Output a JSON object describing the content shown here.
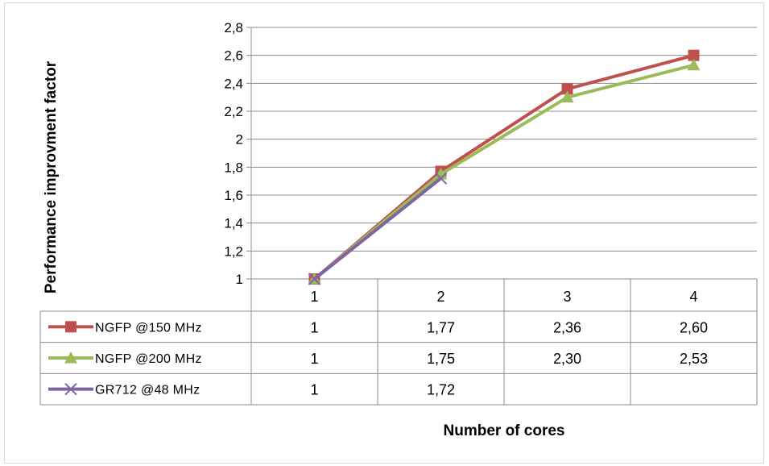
{
  "chart_data": {
    "type": "line",
    "title": "",
    "xlabel": "Number of cores",
    "ylabel": "Performance improvment factor",
    "categories": [
      "1",
      "2",
      "3",
      "4"
    ],
    "ylim": [
      1,
      2.8
    ],
    "ytick_step": 0.2,
    "ytick_labels": [
      "1",
      "1,2",
      "1,4",
      "1,6",
      "1,8",
      "2",
      "2,2",
      "2,4",
      "2,6",
      "2,8"
    ],
    "grid": true,
    "legend": "data-table",
    "series": [
      {
        "name": "NGFP @150 MHz",
        "values": [
          1,
          1.77,
          2.36,
          2.6
        ],
        "labels": [
          "1",
          "1,77",
          "2,36",
          "2,60"
        ],
        "color": "#c0504d",
        "marker": "square"
      },
      {
        "name": "NGFP @200 MHz",
        "values": [
          1,
          1.75,
          2.3,
          2.53
        ],
        "labels": [
          "1",
          "1,75",
          "2,30",
          "2,53"
        ],
        "color": "#9bbb59",
        "marker": "triangle"
      },
      {
        "name": "GR712 @48 MHz",
        "values": [
          1,
          1.72,
          null,
          null
        ],
        "labels": [
          "1",
          "1,72",
          "",
          ""
        ],
        "color": "#8064a2",
        "marker": "x"
      }
    ]
  }
}
